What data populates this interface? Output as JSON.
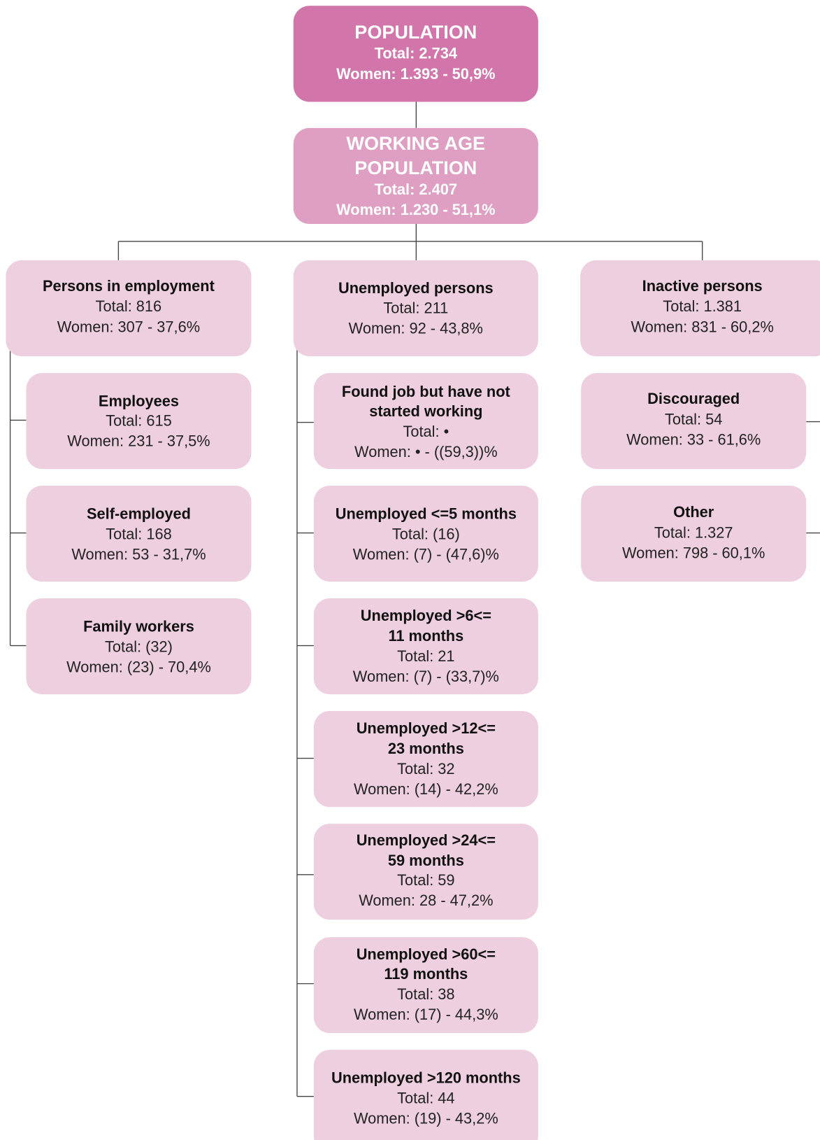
{
  "nodes": [
    {
      "title": [
        "POPULATION"
      ],
      "total": "Total: 2.734",
      "women": "Women: 1.393 - 50,9%"
    },
    {
      "title": [
        "WORKING AGE",
        "POPULATION"
      ],
      "total": "Total: 2.407",
      "women": "Women: 1.230 - 51,1%"
    },
    {
      "title": [
        "Persons in employment"
      ],
      "total": "Total: 816",
      "women": "Women: 307 - 37,6%"
    },
    {
      "title": [
        "Unemployed persons"
      ],
      "total": "Total: 211",
      "women": "Women: 92 - 43,8%"
    },
    {
      "title": [
        "Inactive persons"
      ],
      "total": "Total: 1.381",
      "women": "Women: 831 - 60,2%"
    },
    {
      "title": [
        "Employees"
      ],
      "total": "Total: 615",
      "women": "Women: 231 - 37,5%"
    },
    {
      "title": [
        "Self-employed"
      ],
      "total": "Total: 168",
      "women": "Women: 53 - 31,7%"
    },
    {
      "title": [
        "Family workers"
      ],
      "total": "Total: (32)",
      "women": "Women: (23) - 70,4%"
    },
    {
      "title": [
        "Found job but have not",
        "started working"
      ],
      "total": "Total: •",
      "women": "Women: • - ((59,3))%"
    },
    {
      "title": [
        "Unemployed <=5 months"
      ],
      "total": "Total: (16)",
      "women": "Women: (7) - (47,6)%"
    },
    {
      "title": [
        "Unemployed >6<=",
        "11 months"
      ],
      "total": "Total: 21",
      "women": "Women: (7) - (33,7)%"
    },
    {
      "title": [
        "Unemployed >12<=",
        "23 months"
      ],
      "total": "Total: 32",
      "women": "Women: (14) - 42,2%"
    },
    {
      "title": [
        "Unemployed >24<=",
        "59 months"
      ],
      "total": "Total: 59",
      "women": "Women: 28 - 47,2%"
    },
    {
      "title": [
        "Unemployed >60<=",
        "119 months"
      ],
      "total": "Total: 38",
      "women": "Women: (17) - 44,3%"
    },
    {
      "title": [
        "Unemployed >120 months"
      ],
      "total": "Total: 44",
      "women": "Women: (19) - 43,2%"
    },
    {
      "title": [
        "Discouraged"
      ],
      "total": "Total: 54",
      "women": "Women: 33 - 61,6%"
    },
    {
      "title": [
        "Other"
      ],
      "total": "Total: 1.327",
      "women": "Women: 798 - 60,1%"
    }
  ]
}
